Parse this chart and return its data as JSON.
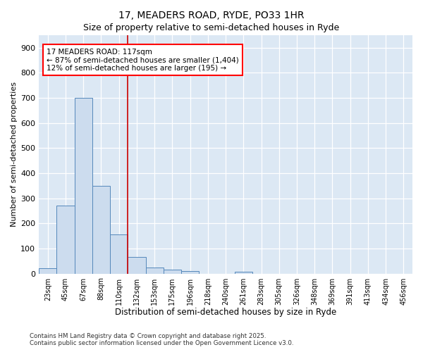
{
  "title": "17, MEADERS ROAD, RYDE, PO33 1HR",
  "subtitle": "Size of property relative to semi-detached houses in Ryde",
  "xlabel": "Distribution of semi-detached houses by size in Ryde",
  "ylabel": "Number of semi-detached properties",
  "footnote1": "Contains HM Land Registry data © Crown copyright and database right 2025.",
  "footnote2": "Contains public sector information licensed under the Open Government Licence v3.0.",
  "annotation_line1": "17 MEADERS ROAD: 117sqm",
  "annotation_line2": "← 87% of semi-detached houses are smaller (1,404)",
  "annotation_line3": "12% of semi-detached houses are larger (195) →",
  "bar_color": "#ccdcee",
  "bar_edgecolor": "#5588bb",
  "vline_color": "#cc0000",
  "fig_background": "#ffffff",
  "plot_background": "#dce8f4",
  "categories": [
    "23sqm",
    "45sqm",
    "67sqm",
    "88sqm",
    "110sqm",
    "132sqm",
    "153sqm",
    "175sqm",
    "196sqm",
    "218sqm",
    "240sqm",
    "261sqm",
    "283sqm",
    "305sqm",
    "326sqm",
    "348sqm",
    "369sqm",
    "391sqm",
    "413sqm",
    "434sqm",
    "456sqm"
  ],
  "values": [
    20,
    270,
    700,
    350,
    155,
    65,
    25,
    15,
    10,
    0,
    0,
    8,
    0,
    0,
    0,
    0,
    0,
    0,
    0,
    0,
    0
  ],
  "ylim": [
    0,
    950
  ],
  "yticks": [
    0,
    100,
    200,
    300,
    400,
    500,
    600,
    700,
    800,
    900
  ],
  "vline_x_index": 4.5,
  "figsize": [
    6.0,
    5.0
  ],
  "dpi": 100
}
